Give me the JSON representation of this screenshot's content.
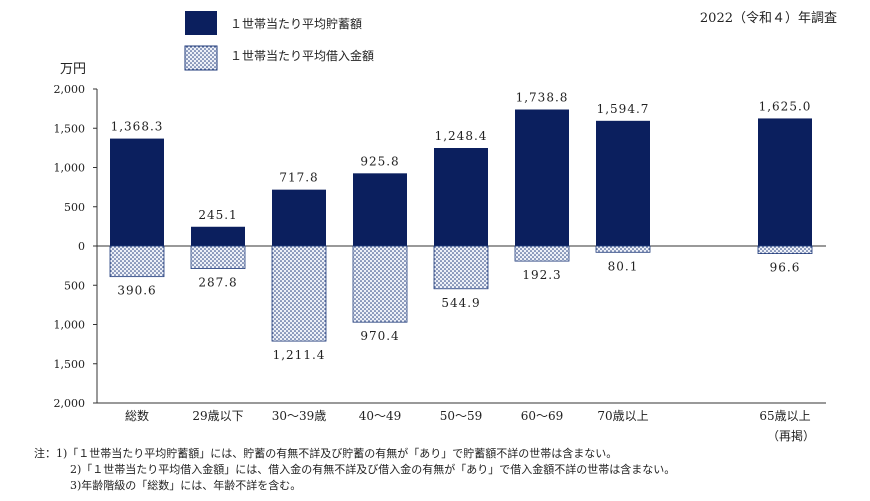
{
  "chart_data": {
    "type": "bar",
    "subtitle": "2022（令和４）年調査",
    "ylabel": "万円",
    "ylim": [
      -2000,
      2000
    ],
    "yticks": [
      2000,
      1500,
      1000,
      500,
      0,
      -500,
      -1000,
      -1500,
      -2000
    ],
    "ytick_labels": [
      "2,000",
      "1,500",
      "1,000",
      "500",
      "0",
      "500",
      "1,000",
      "1,500",
      "2,000"
    ],
    "categories": [
      "総数",
      "29歳以下",
      "30～39歳",
      "40～49",
      "50～59",
      "60～69",
      "70歳以上",
      "65歳以上"
    ],
    "category_sublabels": [
      "",
      "",
      "",
      "",
      "",
      "",
      "",
      "（再掲）"
    ],
    "series": [
      {
        "name": "１世帯当たり平均貯蓄額",
        "color": "#0b1f5e",
        "pattern": "solid",
        "values": [
          1368.3,
          245.1,
          717.8,
          925.8,
          1248.4,
          1738.8,
          1594.7,
          1625.0
        ],
        "labels": [
          "1,368.3",
          "245.1",
          "717.8",
          "925.8",
          "1,248.4",
          "1,738.8",
          "1,594.7",
          "1,625.0"
        ]
      },
      {
        "name": "１世帯当たり平均借入金額",
        "color": "#1f3a7a",
        "pattern": "dotted",
        "values": [
          -390.6,
          -287.8,
          -1211.4,
          -970.4,
          -544.9,
          -192.3,
          -80.1,
          -96.6
        ],
        "labels": [
          "390.6",
          "287.8",
          "1,211.4",
          "970.4",
          "544.9",
          "192.3",
          "80.1",
          "96.6"
        ]
      }
    ],
    "legend_placement": "top",
    "grid": false
  },
  "notes": [
    "注：1)「１世帯当たり平均貯蓄額」には、貯蓄の有無不詳及び貯蓄の有無が「あり」で貯蓄額不詳の世帯は含まない。",
    "2)「１世帯当たり平均借入金額」には、借入金の有無不詳及び借入金の有無が「あり」で借入金額不詳の世帯は含まない。",
    "3)年齢階級の「総数」には、年齢不詳を含む。"
  ]
}
